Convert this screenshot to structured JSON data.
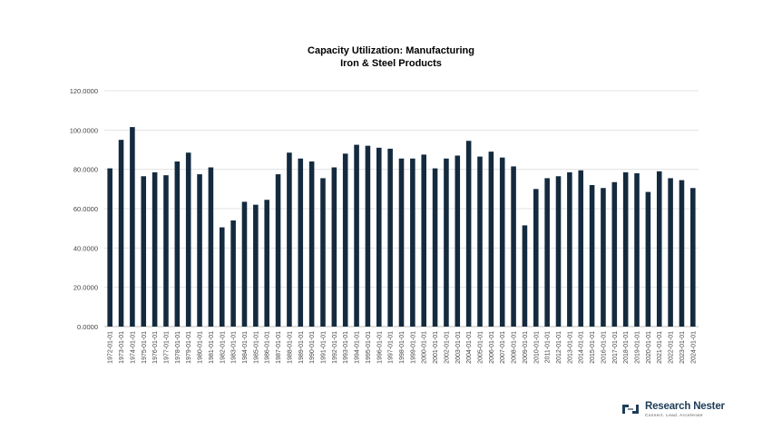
{
  "chart_data": {
    "type": "bar",
    "title": [
      "Capacity Utilization: Manufacturing",
      "Iron & Steel Products"
    ],
    "xlabel": "",
    "ylabel": "",
    "ylim": [
      0,
      120
    ],
    "yticks": [
      "0.0000",
      "20.0000",
      "40.0000",
      "60.0000",
      "80.0000",
      "100.0000",
      "120.0000"
    ],
    "grid": true,
    "legend": "none",
    "bar_color": "#142a3e",
    "categories": [
      "1972-01-01",
      "1973-01-01",
      "1974-01-01",
      "1975-01-01",
      "1976-01-01",
      "1977-01-01",
      "1978-01-01",
      "1979-01-01",
      "1980-01-01",
      "1981-01-01",
      "1982-01-01",
      "1983-01-01",
      "1984-01-01",
      "1985-01-01",
      "1986-01-01",
      "1987-01-01",
      "1988-01-01",
      "1989-01-01",
      "1990-01-01",
      "1991-01-01",
      "1992-01-01",
      "1993-01-01",
      "1994-01-01",
      "1995-01-01",
      "1996-01-01",
      "1997-01-01",
      "1998-01-01",
      "1999-01-01",
      "2000-01-01",
      "2001-01-01",
      "2002-01-01",
      "2003-01-01",
      "2004-01-01",
      "2005-01-01",
      "2006-01-01",
      "2007-01-01",
      "2008-01-01",
      "2009-01-01",
      "2010-01-01",
      "2011-01-01",
      "2012-01-01",
      "2013-01-01",
      "2014-01-01",
      "2015-01-01",
      "2016-01-01",
      "2017-01-01",
      "2018-01-01",
      "2019-01-01",
      "2020-01-01",
      "2021-01-01",
      "2022-01-01",
      "2023-01-01",
      "2024-01-01"
    ],
    "values": [
      80.5,
      95.0,
      101.5,
      76.5,
      78.5,
      77.0,
      84.0,
      88.5,
      77.5,
      81.0,
      50.5,
      54.0,
      63.5,
      62.0,
      64.5,
      77.5,
      88.5,
      85.5,
      84.0,
      75.5,
      81.0,
      88.0,
      92.5,
      92.0,
      91.0,
      90.5,
      85.5,
      85.5,
      87.5,
      80.5,
      85.5,
      87.0,
      94.5,
      86.5,
      89.0,
      86.0,
      81.5,
      51.5,
      70.0,
      75.5,
      76.5,
      78.5,
      79.5,
      72.0,
      70.5,
      73.5,
      78.5,
      78.0,
      68.5,
      79.0,
      75.5,
      74.5,
      70.5
    ]
  },
  "logo": {
    "name_part1": "Research ",
    "name_part2": "Nester",
    "tagline": "Connect. Lead. Accelerate"
  }
}
